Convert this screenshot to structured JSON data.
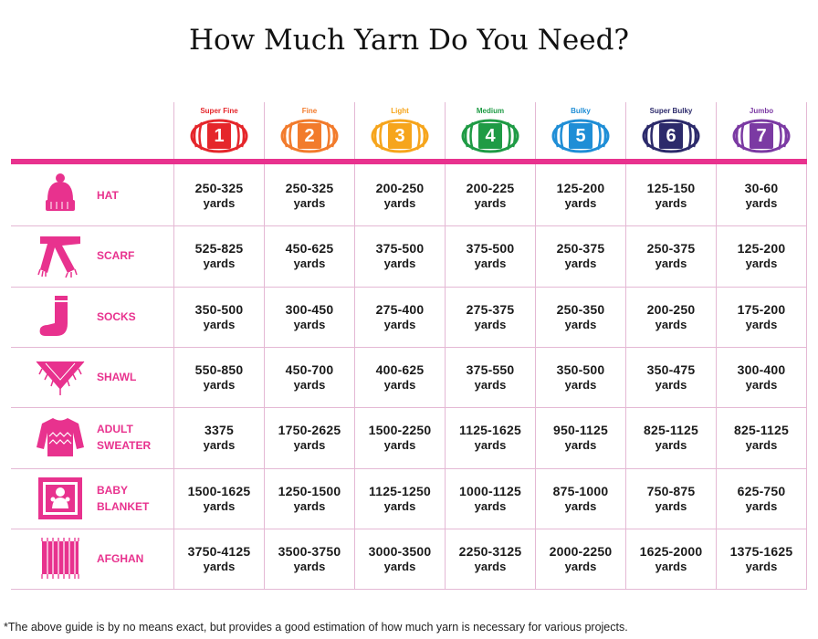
{
  "title": "How Much Yarn Do You Need?",
  "weights": [
    {
      "label": "Super Fine",
      "number": "1",
      "color": "#e5262b"
    },
    {
      "label": "Fine",
      "number": "2",
      "color": "#f27b2c"
    },
    {
      "label": "Light",
      "number": "3",
      "color": "#f6a51c"
    },
    {
      "label": "Medium",
      "number": "4",
      "color": "#1f9b45"
    },
    {
      "label": "Bulky",
      "number": "5",
      "color": "#1f8ed6"
    },
    {
      "label": "Super Bulky",
      "number": "6",
      "color": "#2c2a6b"
    },
    {
      "label": "Jumbo",
      "number": "7",
      "color": "#7b3aa3"
    }
  ],
  "unit": "yards",
  "accent_color": "#e8328e",
  "rows": [
    {
      "project": "HAT",
      "icon": "hat-icon",
      "values": [
        "250-325",
        "250-325",
        "200-250",
        "200-225",
        "125-200",
        "125-150",
        "30-60"
      ]
    },
    {
      "project": "SCARF",
      "icon": "scarf-icon",
      "values": [
        "525-825",
        "450-625",
        "375-500",
        "375-500",
        "250-375",
        "250-375",
        "125-200"
      ]
    },
    {
      "project": "SOCKS",
      "icon": "sock-icon",
      "values": [
        "350-500",
        "300-450",
        "275-400",
        "275-375",
        "250-350",
        "200-250",
        "175-200"
      ]
    },
    {
      "project": "SHAWL",
      "icon": "shawl-icon",
      "values": [
        "550-850",
        "450-700",
        "400-625",
        "375-550",
        "350-500",
        "350-475",
        "300-400"
      ]
    },
    {
      "project": "ADULT\nSWEATER",
      "icon": "sweater-icon",
      "values": [
        "3375",
        "1750-2625",
        "1500-2250",
        "1125-1625",
        "950-1125",
        "825-1125",
        "825-1125"
      ]
    },
    {
      "project": "BABY\nBLANKET",
      "icon": "baby-blanket-icon",
      "values": [
        "1500-1625",
        "1250-1500",
        "1125-1250",
        "1000-1125",
        "875-1000",
        "750-875",
        "625-750"
      ]
    },
    {
      "project": "AFGHAN",
      "icon": "afghan-icon",
      "values": [
        "3750-4125",
        "3500-3750",
        "3000-3500",
        "2250-3125",
        "2000-2250",
        "1625-2000",
        "1375-1625"
      ]
    }
  ],
  "footnote": "*The above guide is by no means exact, but provides a good estimation of how much yarn is necessary for various projects."
}
